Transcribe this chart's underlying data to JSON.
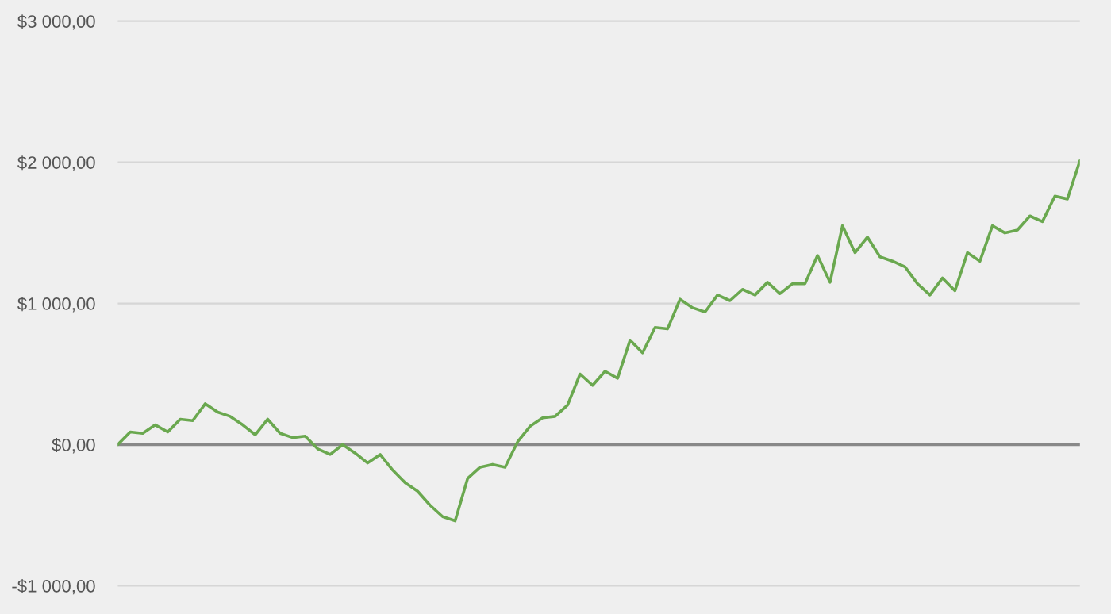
{
  "chart_data": {
    "type": "line",
    "categories": [
      null,
      null,
      null,
      null,
      null,
      null,
      null,
      null,
      null,
      null,
      null,
      null,
      null,
      null,
      null,
      null,
      null,
      null,
      null,
      null,
      null,
      null,
      null,
      null,
      null,
      null,
      null,
      null,
      null,
      null,
      null,
      null,
      null,
      null,
      null,
      null,
      null,
      null,
      null,
      null,
      null,
      null,
      null,
      null,
      null,
      null,
      null,
      null,
      null,
      null,
      null,
      null,
      null,
      null,
      null,
      null,
      null,
      null,
      null,
      null,
      null,
      null,
      null,
      null,
      null,
      null,
      null,
      null,
      null,
      null,
      null,
      null,
      null,
      null,
      null,
      null,
      null,
      null
    ],
    "series": [
      {
        "color": "#6aa84f",
        "values": [
          0,
          90,
          80,
          140,
          90,
          180,
          170,
          290,
          230,
          200,
          140,
          70,
          180,
          80,
          50,
          60,
          -30,
          -70,
          0,
          -60,
          -130,
          -70,
          -180,
          -270,
          -330,
          -430,
          -510,
          -540,
          -240,
          -160,
          -140,
          -160,
          20,
          130,
          190,
          200,
          280,
          500,
          420,
          520,
          470,
          740,
          650,
          830,
          820,
          1030,
          970,
          940,
          1060,
          1020,
          1100,
          1060,
          1150,
          1070,
          1140,
          1140,
          1340,
          1150,
          1550,
          1360,
          1470,
          1330,
          1300,
          1260,
          1140,
          1060,
          1180,
          1090,
          1360,
          1300,
          1550,
          1500,
          1520,
          1620,
          1580,
          1760,
          1740,
          2010
        ]
      }
    ],
    "ylim": [
      -1200,
      3150
    ],
    "yticks": [
      {
        "value": -1000,
        "label": "-$1 000,00"
      },
      {
        "value": 0,
        "label": "$0,00"
      },
      {
        "value": 1000,
        "label": "$1 000,00"
      },
      {
        "value": 2000,
        "label": "$2 000,00"
      },
      {
        "value": 3000,
        "label": "$3 000,00"
      }
    ],
    "grid": "y",
    "marker": "none",
    "line_style": "solid",
    "ref_lines": [
      {
        "axis": "y",
        "value": 0,
        "color": "#888888"
      }
    ]
  }
}
